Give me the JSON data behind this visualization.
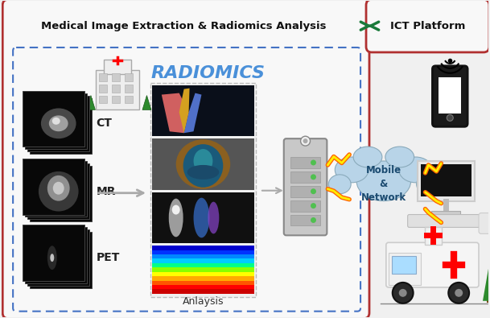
{
  "title_left": "Medical Image Extraction & Radiomics Analysis",
  "title_right": "ICT Platform",
  "radiomics_text": "RADIOMICS",
  "scan_labels": [
    "CT",
    "MR",
    "PET"
  ],
  "analysis_label": "Anlaysis",
  "mobile_network_text": "Mobile\n&\nNetwork",
  "bg_color": "#f0f0f0",
  "left_box_edge": "#b03030",
  "right_box_edge": "#b03030",
  "box_fill": "#f8f8f8",
  "dashed_color": "#4472c4",
  "arrow_green": "#1a7a3a",
  "radiomics_color": "#4a90d9",
  "cloud_color": "#b8d4e8",
  "cloud_edge": "#8aaabb",
  "figsize": [
    6.09,
    3.95
  ],
  "dpi": 100
}
